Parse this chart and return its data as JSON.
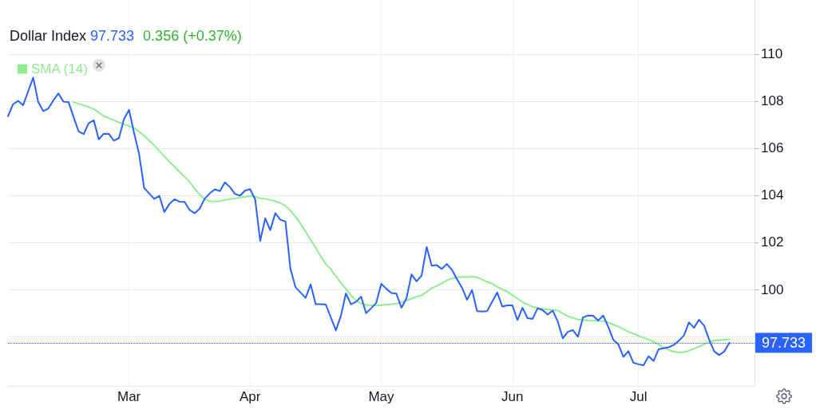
{
  "chart_data": {
    "type": "line",
    "title": "Dollar Index",
    "annotations": [
      "97.733",
      "0.356 (+0.37%)"
    ],
    "categories": [
      null,
      null,
      null,
      null,
      null,
      null,
      null,
      null,
      null,
      null,
      null,
      null,
      null,
      null,
      null,
      null,
      null,
      null,
      null,
      null,
      null,
      null,
      null,
      null,
      "Mar",
      null,
      null,
      null,
      null,
      null,
      null,
      null,
      null,
      null,
      null,
      null,
      null,
      null,
      null,
      null,
      null,
      null,
      null,
      null,
      null,
      null,
      null,
      null,
      "Apr",
      null,
      null,
      null,
      null,
      null,
      null,
      null,
      null,
      null,
      null,
      null,
      null,
      null,
      null,
      null,
      null,
      null,
      null,
      null,
      null,
      null,
      null,
      null,
      null,
      null,
      "May",
      null,
      null,
      null,
      null,
      null,
      null,
      null,
      null,
      null,
      null,
      null,
      null,
      null,
      null,
      null,
      null,
      null,
      null,
      null,
      null,
      null,
      null,
      null,
      null,
      null,
      "Jun",
      null,
      null,
      null,
      null,
      null,
      null,
      null,
      null,
      null,
      null,
      null,
      null,
      null,
      null,
      null,
      null,
      null,
      null,
      null,
      null,
      null,
      null,
      null,
      null,
      "Jul",
      null,
      null,
      null,
      null,
      null,
      null,
      null,
      null,
      null,
      null,
      null,
      null,
      null,
      null,
      null,
      null,
      null,
      null,
      null,
      null,
      null,
      null,
      null
    ],
    "series": [
      {
        "color": "#2962ff",
        "values": [
          107.36,
          107.87,
          108.01,
          107.83,
          108.42,
          109.0,
          107.96,
          107.58,
          107.69,
          108.03,
          108.33,
          107.98,
          107.96,
          107.33,
          106.71,
          106.6,
          107.06,
          107.19,
          106.38,
          106.62,
          106.61,
          106.32,
          106.43,
          107.24,
          107.63,
          106.65,
          105.75,
          104.31,
          104.08,
          103.85,
          103.98,
          103.29,
          103.63,
          103.83,
          103.73,
          103.72,
          103.38,
          103.24,
          103.43,
          103.86,
          104.08,
          104.25,
          104.18,
          104.55,
          104.35,
          104.06,
          103.98,
          104.2,
          104.26,
          103.83,
          102.06,
          103.02,
          102.52,
          103.24,
          102.96,
          102.89,
          100.87,
          100.09,
          99.87,
          99.64,
          100.21,
          99.37,
          99.37,
          99.36,
          98.81,
          98.26,
          98.88,
          99.83,
          99.37,
          99.47,
          99.69,
          98.99,
          99.2,
          99.42,
          100.24,
          100.03,
          99.85,
          99.82,
          99.22,
          99.62,
          100.64,
          100.34,
          100.59,
          101.8,
          101.01,
          101.03,
          100.87,
          101.08,
          100.84,
          100.44,
          100.08,
          99.56,
          99.97,
          99.08,
          99.06,
          99.08,
          99.48,
          99.87,
          99.27,
          99.32,
          99.32,
          98.7,
          99.22,
          98.78,
          98.75,
          99.2,
          99.12,
          98.93,
          99.1,
          98.63,
          97.92,
          98.2,
          98.27,
          97.99,
          98.81,
          98.89,
          98.88,
          98.68,
          98.89,
          98.41,
          97.86,
          97.67,
          97.13,
          97.38,
          96.88,
          96.82,
          96.77,
          97.16,
          96.96,
          97.46,
          97.5,
          97.54,
          97.64,
          97.82,
          98.04,
          98.6,
          98.37,
          98.71,
          98.46,
          97.87,
          97.37,
          97.21,
          97.36,
          97.733,
          null,
          null,
          null,
          null,
          null
        ]
      },
      {
        "name": "SMA (14)",
        "color": "#90ee90",
        "values": [
          null,
          null,
          null,
          null,
          null,
          null,
          null,
          null,
          null,
          null,
          null,
          null,
          null,
          107.96,
          107.89,
          107.83,
          107.75,
          107.66,
          107.52,
          107.37,
          107.28,
          107.19,
          107.1,
          107.02,
          106.94,
          106.86,
          106.7,
          106.53,
          106.33,
          106.12,
          105.89,
          105.65,
          105.43,
          105.22,
          105.0,
          104.79,
          104.57,
          104.28,
          104.03,
          103.84,
          103.74,
          103.74,
          103.75,
          103.8,
          103.84,
          103.87,
          103.9,
          103.94,
          103.97,
          103.94,
          103.87,
          103.85,
          103.8,
          103.75,
          103.67,
          103.56,
          103.35,
          103.09,
          102.79,
          102.46,
          102.11,
          101.77,
          101.41,
          101.08,
          100.86,
          100.56,
          100.28,
          100.02,
          99.75,
          99.53,
          99.4,
          99.35,
          99.32,
          99.31,
          99.33,
          99.35,
          99.37,
          99.4,
          99.45,
          99.52,
          99.61,
          99.69,
          99.75,
          99.9,
          100.05,
          100.15,
          100.26,
          100.38,
          100.46,
          100.51,
          100.53,
          100.52,
          100.54,
          100.52,
          100.42,
          100.32,
          100.24,
          100.11,
          100.0,
          99.9,
          99.76,
          99.61,
          99.46,
          99.36,
          99.26,
          99.21,
          99.17,
          99.15,
          99.13,
          99.1,
          98.98,
          98.86,
          98.79,
          98.72,
          98.7,
          98.68,
          98.67,
          98.66,
          98.65,
          98.6,
          98.5,
          98.42,
          98.31,
          98.21,
          98.12,
          98.03,
          97.95,
          97.87,
          97.78,
          97.65,
          97.52,
          97.42,
          97.36,
          97.32,
          97.34,
          97.39,
          97.48,
          97.57,
          97.67,
          97.76,
          97.82,
          97.84,
          97.86,
          97.88,
          null,
          null,
          null,
          null,
          null
        ]
      }
    ],
    "ylim": [
      95.9,
      112.3
    ],
    "yticks": [
      {
        "value": 98,
        "label": null
      },
      100,
      102,
      104,
      106,
      108,
      110
    ],
    "grid": true,
    "legend": "top left",
    "marker": "none",
    "ref_lines": [
      {
        "axis": "y",
        "value": 97.733,
        "label": "97.733",
        "color": "#2962ff",
        "line_style": "dotted"
      }
    ]
  }
}
